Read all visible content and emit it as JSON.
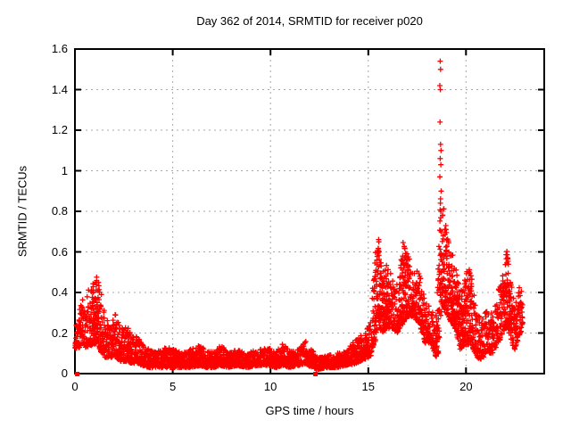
{
  "chart_data": {
    "type": "scatter",
    "title": "Day 362 of 2014, SRMTID for receiver p020",
    "xlabel": "GPS time / hours",
    "ylabel": "SRMTID / TECUs",
    "xlim": [
      0,
      24
    ],
    "ylim": [
      0,
      1.6
    ],
    "xticks": [
      {
        "value": 0,
        "label": "0"
      },
      {
        "value": 5,
        "label": "5"
      },
      {
        "value": 10,
        "label": "10"
      },
      {
        "value": 15,
        "label": "15"
      },
      {
        "value": 20,
        "label": "20"
      }
    ],
    "yticks": [
      {
        "value": 0,
        "label": "0"
      },
      {
        "value": 0.2,
        "label": "0.2"
      },
      {
        "value": 0.4,
        "label": "0.4"
      },
      {
        "value": 0.6,
        "label": "0.6"
      },
      {
        "value": 0.8,
        "label": "0.8"
      },
      {
        "value": 1,
        "label": "1"
      },
      {
        "value": 1.2,
        "label": "1.2"
      },
      {
        "value": 1.4,
        "label": "1.4"
      },
      {
        "value": 1.6,
        "label": "1.6"
      }
    ],
    "grid": true,
    "grid_color": "#a8a8a8",
    "marker": "plus",
    "marker_color": "#ff0000",
    "series_name": "SRMTID",
    "sample_interval_hours": 0.008333,
    "data_start_hour": 0.008,
    "data_end_hour": 22.9,
    "envelope_lo_hi_by_hour": [
      [
        0.0,
        0.12,
        0.22
      ],
      [
        0.25,
        0.13,
        0.35
      ],
      [
        0.55,
        0.13,
        0.4
      ],
      [
        0.9,
        0.14,
        0.44
      ],
      [
        1.15,
        0.15,
        0.49
      ],
      [
        1.35,
        0.1,
        0.4
      ],
      [
        1.55,
        0.08,
        0.3
      ],
      [
        1.8,
        0.08,
        0.22
      ],
      [
        2.05,
        0.08,
        0.3
      ],
      [
        2.35,
        0.06,
        0.22
      ],
      [
        2.65,
        0.06,
        0.25
      ],
      [
        2.9,
        0.05,
        0.18
      ],
      [
        3.15,
        0.05,
        0.21
      ],
      [
        3.45,
        0.04,
        0.15
      ],
      [
        3.8,
        0.03,
        0.12
      ],
      [
        4.2,
        0.03,
        0.11
      ],
      [
        4.7,
        0.03,
        0.13
      ],
      [
        5.1,
        0.03,
        0.12
      ],
      [
        5.5,
        0.03,
        0.1
      ],
      [
        5.9,
        0.03,
        0.12
      ],
      [
        6.4,
        0.04,
        0.15
      ],
      [
        6.7,
        0.03,
        0.11
      ],
      [
        7.1,
        0.03,
        0.11
      ],
      [
        7.45,
        0.04,
        0.15
      ],
      [
        7.8,
        0.03,
        0.1
      ],
      [
        8.3,
        0.04,
        0.12
      ],
      [
        8.8,
        0.03,
        0.1
      ],
      [
        9.3,
        0.04,
        0.12
      ],
      [
        9.9,
        0.04,
        0.13
      ],
      [
        10.3,
        0.03,
        0.11
      ],
      [
        10.6,
        0.04,
        0.16
      ],
      [
        11.0,
        0.03,
        0.11
      ],
      [
        11.4,
        0.04,
        0.12
      ],
      [
        11.8,
        0.05,
        0.16
      ],
      [
        12.1,
        0.03,
        0.12
      ],
      [
        12.4,
        0.02,
        0.08
      ],
      [
        12.9,
        0.03,
        0.09
      ],
      [
        13.4,
        0.03,
        0.1
      ],
      [
        13.9,
        0.04,
        0.11
      ],
      [
        14.4,
        0.05,
        0.18
      ],
      [
        14.8,
        0.07,
        0.2
      ],
      [
        15.1,
        0.08,
        0.25
      ],
      [
        15.35,
        0.15,
        0.6
      ],
      [
        15.5,
        0.25,
        0.71
      ],
      [
        15.7,
        0.2,
        0.5
      ],
      [
        15.95,
        0.22,
        0.56
      ],
      [
        16.2,
        0.22,
        0.48
      ],
      [
        16.5,
        0.2,
        0.45
      ],
      [
        16.8,
        0.25,
        0.66
      ],
      [
        17.0,
        0.28,
        0.6
      ],
      [
        17.3,
        0.28,
        0.52
      ],
      [
        17.6,
        0.25,
        0.5
      ],
      [
        17.9,
        0.15,
        0.38
      ],
      [
        18.2,
        0.15,
        0.33
      ],
      [
        18.45,
        0.08,
        0.3
      ],
      [
        18.6,
        0.1,
        0.6
      ],
      [
        18.72,
        0.3,
        0.95
      ],
      [
        18.85,
        0.32,
        0.85
      ],
      [
        19.0,
        0.3,
        0.75
      ],
      [
        19.2,
        0.26,
        0.62
      ],
      [
        19.45,
        0.22,
        0.55
      ],
      [
        19.7,
        0.12,
        0.42
      ],
      [
        20.0,
        0.14,
        0.5
      ],
      [
        20.25,
        0.15,
        0.52
      ],
      [
        20.5,
        0.08,
        0.32
      ],
      [
        20.8,
        0.07,
        0.26
      ],
      [
        21.05,
        0.1,
        0.32
      ],
      [
        21.35,
        0.1,
        0.3
      ],
      [
        21.6,
        0.14,
        0.4
      ],
      [
        21.9,
        0.2,
        0.5
      ],
      [
        22.1,
        0.25,
        0.62
      ],
      [
        22.3,
        0.15,
        0.45
      ],
      [
        22.5,
        0.12,
        0.35
      ],
      [
        22.7,
        0.18,
        0.45
      ],
      [
        22.88,
        0.22,
        0.4
      ]
    ],
    "outlier_points": [
      [
        18.68,
        1.54
      ],
      [
        18.7,
        1.5
      ],
      [
        18.66,
        1.42
      ],
      [
        18.69,
        1.4
      ],
      [
        18.67,
        1.24
      ],
      [
        18.7,
        1.13
      ],
      [
        18.72,
        1.1
      ],
      [
        18.68,
        1.06
      ],
      [
        18.71,
        1.03
      ],
      [
        18.66,
        0.97
      ],
      [
        18.73,
        0.9
      ],
      [
        18.69,
        0.84
      ],
      [
        18.71,
        0.8
      ]
    ],
    "notable_peaks": [
      {
        "hour": 18.7,
        "value": 1.54
      },
      {
        "hour": 15.5,
        "value": 0.71
      },
      {
        "hour": 16.8,
        "value": 0.66
      },
      {
        "hour": 22.1,
        "value": 0.62
      },
      {
        "hour": 20.25,
        "value": 0.52
      },
      {
        "hour": 1.15,
        "value": 0.49
      }
    ],
    "zero_value_square_markers_hours": [
      0.12,
      12.3
    ]
  }
}
